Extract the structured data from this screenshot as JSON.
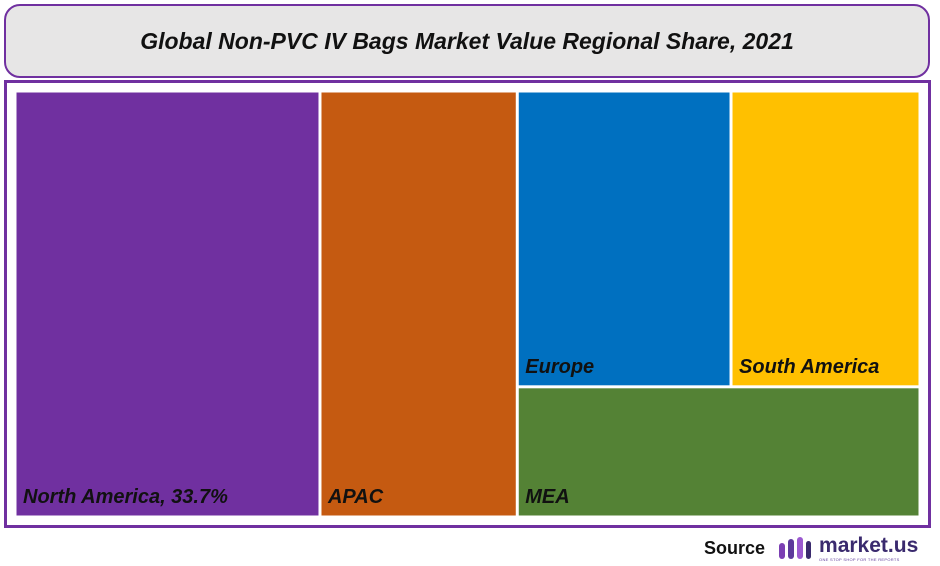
{
  "chart_data": {
    "type": "treemap",
    "title": "Global Non-PVC IV Bags Market Value Regional Share, 2021",
    "rects": [
      {
        "label": "North America, 33.7%",
        "share": 33.7,
        "color": "#7030a0"
      },
      {
        "label": "APAC",
        "share": 21.8,
        "color": "#c55a11"
      },
      {
        "label": "Europe",
        "share": 16.4,
        "color": "#0070c0"
      },
      {
        "label": "South America",
        "share": 14.5,
        "color": "#ffc000"
      },
      {
        "label": "MEA",
        "share": 13.6,
        "color": "#548235"
      }
    ]
  },
  "source": {
    "label": "Source",
    "brand": "market.us",
    "tagline": "ONE STOP SHOP FOR THE REPORTS"
  },
  "colors": {
    "frame": "#7030a0",
    "title_bg": "#e7e6e6"
  }
}
